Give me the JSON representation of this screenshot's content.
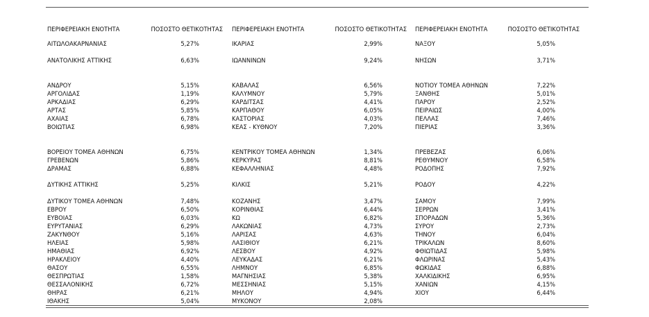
{
  "table": {
    "header": [
      "ΠΕΡΙΦΕΡΕΙΑΚΗ ΕΝΟΤΗΤΑ",
      "ΠΟΣΟΣΤΟ ΘΕΤΙΚΟΤΗΤΑΣ",
      "ΠΕΡΙΦΕΡΕΙΑΚΗ ΕΝΟΤΗΤΑ",
      "ΠΟΣΟΣΤΟ ΘΕΤΙΚΟΤΗΤΑΣ",
      "ΠΕΡΙΦΕΡΕΙΑΚΗ ΕΝΟΤΗΤΑ",
      "ΠΟΣΟΣΤΟ ΘΕΤΙΚΟΤΗΤΑΣ"
    ],
    "rows": [
      [
        "ΑΙΤΩΛΟΑΚΑΡΝΑΝΙΑΣ",
        "5,27%",
        "ΙΚΑΡΙΑΣ",
        "2,99%",
        "ΝΑΞΟΥ",
        "5,05%"
      ],
      [
        "ΑΝΑΤΟΛΙΚΗΣ ΑΤΤΙΚΗΣ",
        "6,63%",
        "ΙΩΑΝΝΙΝΩΝ",
        "9,24%",
        "ΝΗΣΩΝ",
        "3,71%"
      ],
      [
        "ΑΝΔΡΟΥ",
        "5,15%",
        "ΚΑΒΑΛΑΣ",
        "6,56%",
        "ΝΟΤΙΟΥ ΤΟΜΕΑ ΑΘΗΝΩΝ",
        "7,22%"
      ],
      [
        "ΑΡΓΟΛΙΔΑΣ",
        "1,19%",
        "ΚΑΛΥΜΝΟΥ",
        "5,79%",
        "ΞΑΝΘΗΣ",
        "5,01%"
      ],
      [
        "ΑΡΚΑΔΙΑΣ",
        "6,29%",
        "ΚΑΡΔΙΤΣΑΣ",
        "4,41%",
        "ΠΑΡΟΥ",
        "2,52%"
      ],
      [
        "ΑΡΤΑΣ",
        "5,85%",
        "ΚΑΡΠΑΘΟΥ",
        "6,05%",
        "ΠΕΙΡΑΙΩΣ",
        "4,00%"
      ],
      [
        "ΑΧΑΙΑΣ",
        "6,78%",
        "ΚΑΣΤΟΡΙΑΣ",
        "4,03%",
        "ΠΕΛΛΑΣ",
        "7,46%"
      ],
      [
        "ΒΟΙΩΤΙΑΣ",
        "6,98%",
        "ΚΕΑΣ - ΚΥΘΝΟΥ",
        "7,20%",
        "ΠΙΕΡΙΑΣ",
        "3,36%"
      ],
      [
        "ΒΟΡΕΙΟΥ ΤΟΜΕΑ ΑΘΗΝΩΝ",
        "6,75%",
        "ΚΕΝΤΡΙΚΟΥ ΤΟΜΕΑ ΑΘΗΝΩΝ",
        "1,34%",
        "ΠΡΕΒΕΖΑΣ",
        "6,06%"
      ],
      [
        "ΓΡΕΒΕΝΩΝ",
        "5,86%",
        "ΚΕΡΚΥΡΑΣ",
        "8,81%",
        "ΡΕΘΥΜΝΟΥ",
        "6,58%"
      ],
      [
        "ΔΡΑΜΑΣ",
        "6,88%",
        "ΚΕΦΑΛΛΗΝΙΑΣ",
        "4,48%",
        "ΡΟΔΟΠΗΣ",
        "7,92%"
      ],
      [
        "ΔΥΤΙΚΗΣ ΑΤΤΙΚΗΣ",
        "5,25%",
        "ΚΙΛΚΙΣ",
        "5,21%",
        "ΡΟΔΟΥ",
        "4,22%"
      ],
      [
        "ΔΥΤΙΚΟΥ ΤΟΜΕΑ ΑΘΗΝΩΝ",
        "7,48%",
        "ΚΟΖΑΝΗΣ",
        "3,47%",
        "ΣΑΜΟΥ",
        "7,99%"
      ],
      [
        "ΕΒΡΟΥ",
        "6,50%",
        "ΚΟΡΙΝΘΙΑΣ",
        "6,44%",
        "ΣΕΡΡΩΝ",
        "3,41%"
      ],
      [
        "ΕΥΒΟΙΑΣ",
        "6,03%",
        "ΚΩ",
        "6,82%",
        "ΣΠΟΡΑΔΩΝ",
        "5,36%"
      ],
      [
        "ΕΥΡΥΤΑΝΙΑΣ",
        "6,29%",
        "ΛΑΚΩΝΙΑΣ",
        "4,73%",
        "ΣΥΡΟΥ",
        "2,73%"
      ],
      [
        "ΖΑΚΥΝΘΟΥ",
        "5,16%",
        "ΛΑΡΙΣΑΣ",
        "4,63%",
        "ΤΗΝΟΥ",
        "6,04%"
      ],
      [
        "ΗΛΕΙΑΣ",
        "5,98%",
        "ΛΑΣΙΘΙΟΥ",
        "6,21%",
        "ΤΡΙΚΑΛΩΝ",
        "8,60%"
      ],
      [
        "ΗΜΑΘΙΑΣ",
        "6,92%",
        "ΛΕΣΒΟΥ",
        "4,92%",
        "ΦΘΙΩΤΙΔΑΣ",
        "5,98%"
      ],
      [
        "ΗΡΑΚΛΕΙΟΥ",
        "4,40%",
        "ΛΕΥΚΑΔΑΣ",
        "6,21%",
        "ΦΛΩΡΙΝΑΣ",
        "5,43%"
      ],
      [
        "ΘΑΣΟΥ",
        "6,55%",
        "ΛΗΜΝΟΥ",
        "6,85%",
        "ΦΩΚΙΔΑΣ",
        "6,88%"
      ],
      [
        "ΘΕΣΠΡΩΤΙΑΣ",
        "1,58%",
        "ΜΑΓΝΗΣΙΑΣ",
        "5,38%",
        "ΧΑΛΚΙΔΙΚΗΣ",
        "6,95%"
      ],
      [
        "ΘΕΣΣΑΛΟΝΙΚΗΣ",
        "6,72%",
        "ΜΕΣΣΗΝΙΑΣ",
        "5,15%",
        "ΧΑΝΙΩΝ",
        "4,15%"
      ],
      [
        "ΘΗΡΑΣ",
        "6,21%",
        "ΜΗΛΟΥ",
        "4,94%",
        "ΧΙΟΥ",
        "6,44%"
      ],
      [
        "ΙΘΑΚΗΣ",
        "5,04%",
        "ΜΥΚΟΝΟΥ",
        "2,08%"
      ]
    ]
  }
}
